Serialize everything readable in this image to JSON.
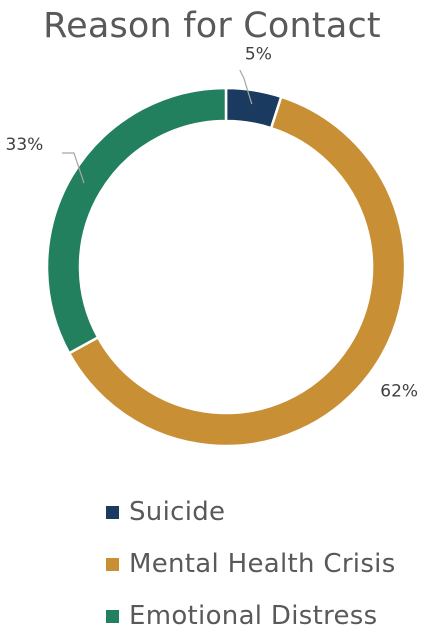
{
  "chart_data": {
    "type": "pie",
    "title": "Reason for Contact",
    "categories": [
      "Suicide",
      "Mental Health Crisis",
      "Emotional Distress"
    ],
    "values": [
      5,
      62,
      33
    ],
    "data_labels": [
      "5%",
      "62%",
      "33%"
    ],
    "colors": [
      "#1b3a5f",
      "#c98f35",
      "#23805f"
    ],
    "style": "donut",
    "legend_position": "bottom"
  }
}
